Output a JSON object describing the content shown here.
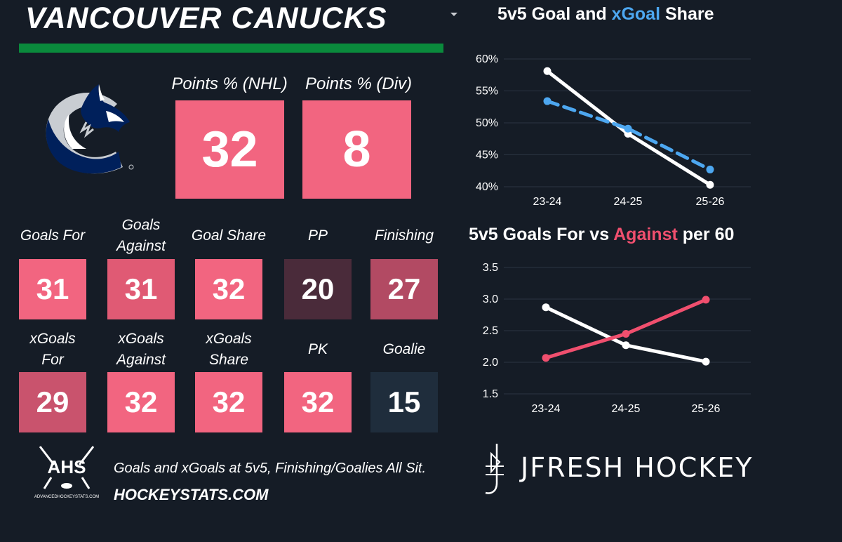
{
  "header": {
    "team_name": "VANCOUVER CANUCKS"
  },
  "top_stats": [
    {
      "label": "Points % (NHL)",
      "value": "32",
      "color": "#f26580"
    },
    {
      "label": "Points % (Div)",
      "value": "8",
      "color": "#f26580"
    }
  ],
  "stats_row1": [
    {
      "label_lines": [
        "Goals For"
      ],
      "value": "31",
      "color": "#f26580"
    },
    {
      "label_lines": [
        "Goals",
        "Against"
      ],
      "value": "31",
      "color": "#e05a74"
    },
    {
      "label_lines": [
        "Goal Share"
      ],
      "value": "32",
      "color": "#f26580"
    },
    {
      "label_lines": [
        "PP"
      ],
      "value": "20",
      "color": "#4a2b3a"
    },
    {
      "label_lines": [
        "Finishing"
      ],
      "value": "27",
      "color": "#b24a63"
    }
  ],
  "stats_row2": [
    {
      "label_lines": [
        "xGoals",
        "For"
      ],
      "value": "29",
      "color": "#c9536d"
    },
    {
      "label_lines": [
        "xGoals",
        "Against"
      ],
      "value": "32",
      "color": "#f26580"
    },
    {
      "label_lines": [
        "xGoals",
        "Share"
      ],
      "value": "32",
      "color": "#f26580"
    },
    {
      "label_lines": [
        "PK"
      ],
      "value": "32",
      "color": "#f26580"
    },
    {
      "label_lines": [
        "Goalie"
      ],
      "value": "15",
      "color": "#1f2d3c"
    }
  ],
  "chart_data": [
    {
      "type": "line",
      "title_parts": [
        {
          "text": "5v5 Goal and ",
          "color": "#ffffff"
        },
        {
          "text": "xGoal",
          "color": "#4da7f0"
        },
        {
          "text": " Share",
          "color": "#ffffff"
        }
      ],
      "categories": [
        "23-24",
        "24-25",
        "25-26"
      ],
      "ylim": [
        40,
        60
      ],
      "yticks": [
        40,
        45,
        50,
        55,
        60
      ],
      "ytick_labels": [
        "40%",
        "45%",
        "50%",
        "55%",
        "60%"
      ],
      "grid": true,
      "series": [
        {
          "values": [
            58.1,
            48.3,
            40.3
          ],
          "color": "#ffffff",
          "dashed": false
        },
        {
          "values": [
            53.4,
            49.1,
            42.7
          ],
          "color": "#4da7f0",
          "dashed": true
        }
      ]
    },
    {
      "type": "line",
      "title_parts": [
        {
          "text": "5v5 Goals For vs ",
          "color": "#ffffff"
        },
        {
          "text": "Against",
          "color": "#f04f6e"
        },
        {
          "text": " per 60",
          "color": "#ffffff"
        }
      ],
      "categories": [
        "23-24",
        "24-25",
        "25-26"
      ],
      "ylim": [
        1.5,
        3.5
      ],
      "yticks": [
        1.5,
        2.0,
        2.5,
        3.0,
        3.5
      ],
      "ytick_labels": [
        "1.5",
        "2.0",
        "2.5",
        "3.0",
        "3.5"
      ],
      "grid": true,
      "series": [
        {
          "values": [
            2.87,
            2.27,
            2.01
          ],
          "color": "#ffffff",
          "dashed": false
        },
        {
          "values": [
            2.07,
            2.45,
            2.99
          ],
          "color": "#f04f6e",
          "dashed": false
        }
      ]
    }
  ],
  "footer": {
    "ahs_logo_text": "AHS",
    "ahs_logo_subtext": "ADVANCEDHOCKEYSTATS.COM",
    "note": "Goals and xGoals at 5v5, Finishing/Goalies All Sit.",
    "site": "HOCKEYSTATS.COM",
    "brand": "JFRESH HOCKEY"
  }
}
